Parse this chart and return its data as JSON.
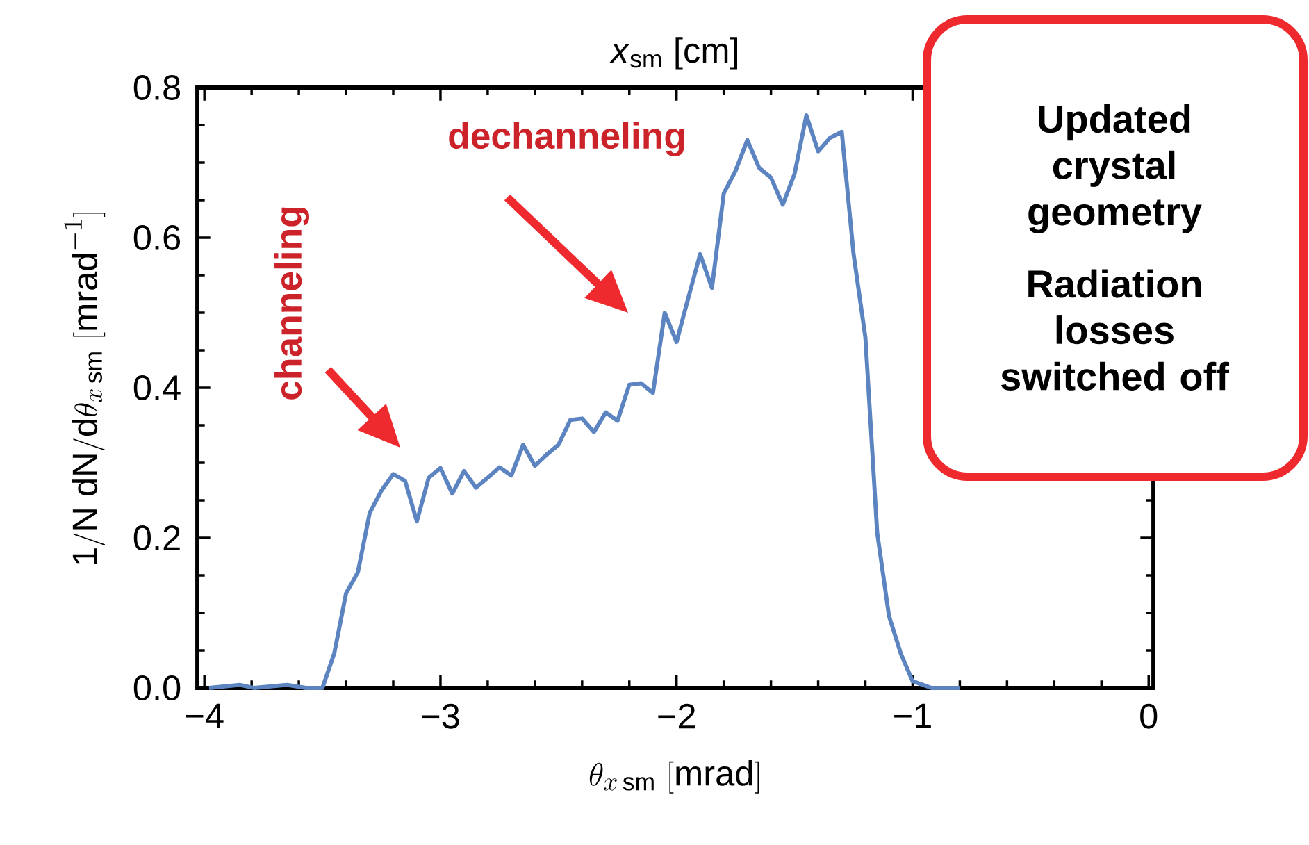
{
  "chart_data": {
    "type": "line",
    "xlabel": "\\theta_{x\\,\\mathrm{sm}}\\ [\\mathrm{mrad}]",
    "ylabel": "\\mathrm{1/N\\ dN/d}\\theta_{x\\,\\mathrm{sm}}\\ [\\mathrm{mrad}^{-1}]",
    "x2label": "*x*$_{sm}$ [cm]",
    "x": [
      -3.98,
      -3.85,
      -3.79,
      -3.65,
      -3.57,
      -3.5,
      -3.45,
      -3.4,
      -3.35,
      -3.3,
      -3.25,
      -3.2,
      -3.15,
      -3.1,
      -3.05,
      -3.0,
      -2.95,
      -2.9,
      -2.85,
      -2.8,
      -2.75,
      -2.7,
      -2.65,
      -2.6,
      -2.55,
      -2.5,
      -2.45,
      -2.4,
      -2.35,
      -2.3,
      -2.25,
      -2.2,
      -2.15,
      -2.1,
      -2.05,
      -2.0,
      -1.95,
      -1.9,
      -1.85,
      -1.8,
      -1.75,
      -1.7,
      -1.65,
      -1.6,
      -1.55,
      -1.5,
      -1.45,
      -1.4,
      -1.35,
      -1.3,
      -1.25,
      -1.2,
      -1.15,
      -1.1,
      -1.05,
      -1.0,
      -0.92,
      -0.8
    ],
    "series": [
      {
        "color": "#5b84c0",
        "values": [
          0,
          0.004,
          0,
          0.004,
          0,
          0,
          0.046,
          0.126,
          0.154,
          0.233,
          0.263,
          0.285,
          0.276,
          0.222,
          0.28,
          0.293,
          0.259,
          0.289,
          0.267,
          0.28,
          0.294,
          0.283,
          0.324,
          0.296,
          0.311,
          0.324,
          0.357,
          0.359,
          0.341,
          0.367,
          0.356,
          0.404,
          0.406,
          0.393,
          0.5,
          0.461,
          0.52,
          0.578,
          0.533,
          0.659,
          0.689,
          0.73,
          0.693,
          0.68,
          0.644,
          0.685,
          0.763,
          0.715,
          0.733,
          0.741,
          0.578,
          0.467,
          0.207,
          0.096,
          0.046,
          0.009,
          0,
          0
        ]
      }
    ],
    "xlim": [
      -4.03,
      0.02
    ],
    "ylim": [
      0,
      0.8
    ],
    "xticks": [
      {
        "value": -4,
        "label": "−4"
      },
      {
        "value": -3,
        "label": "−3"
      },
      {
        "value": -2,
        "label": "−2"
      },
      {
        "value": -1,
        "label": "−1"
      },
      0
    ],
    "yticks": [
      {
        "value": 0,
        "label": "0.0"
      },
      0.2,
      0.4,
      0.6,
      0.8
    ],
    "grid": false,
    "marker": "none",
    "line_style": "solid",
    "annotations": [
      "channeling",
      "dechanneling",
      "Updated crystal geometry",
      "Radiation losses switched off"
    ]
  }
}
